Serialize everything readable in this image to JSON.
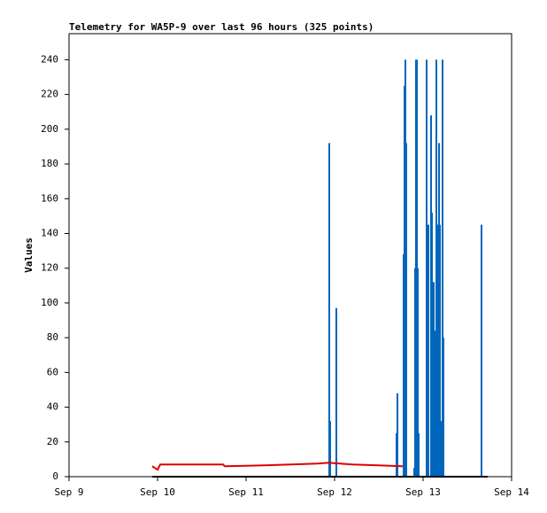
{
  "chart_data": {
    "type": "line",
    "title": "Telemetry for WA5P-9 over last 96 hours (325 points)",
    "y_label": "Values",
    "xlim": [
      9,
      14
    ],
    "xticks": [
      {
        "value": 9,
        "label": "Sep 9"
      },
      {
        "value": 10,
        "label": "Sep 10"
      },
      {
        "value": 11,
        "label": "Sep 11"
      },
      {
        "value": 12,
        "label": "Sep 12"
      },
      {
        "value": 13,
        "label": "Sep 13"
      },
      {
        "value": 14,
        "label": "Sep 14"
      }
    ],
    "ylim": [
      0,
      255
    ],
    "yticks": [
      0,
      20,
      40,
      60,
      80,
      100,
      120,
      140,
      160,
      180,
      200,
      220,
      240
    ],
    "grid": false,
    "series": [
      {
        "color": "#0066bb",
        "style": "impulse",
        "x": [
          11.94,
          11.95,
          12.02,
          12.7,
          12.71,
          12.78,
          12.79,
          12.8,
          12.81,
          12.9,
          12.91,
          12.92,
          12.93,
          12.94,
          12.95,
          13.04,
          13.06,
          13.09,
          13.1,
          13.11,
          13.12,
          13.13,
          13.14,
          13.15,
          13.16,
          13.17,
          13.18,
          13.19,
          13.2,
          13.22,
          13.23,
          13.66
        ],
        "values": [
          192,
          32,
          97,
          25,
          48,
          128,
          225,
          240,
          192,
          5,
          120,
          240,
          240,
          120,
          25,
          240,
          145,
          208,
          152,
          96,
          112,
          84,
          80,
          240,
          145,
          145,
          192,
          145,
          32,
          240,
          80,
          145
        ]
      },
      {
        "color": "#dd0000",
        "style": "line",
        "x": [
          9.94,
          9.97,
          10.0,
          10.03,
          10.74,
          10.76,
          11.2,
          11.8,
          11.94,
          12.2,
          12.5,
          12.77
        ],
        "values": [
          6,
          5,
          4,
          7,
          7,
          6,
          6.5,
          7.5,
          8,
          7,
          6.5,
          6
        ]
      },
      {
        "color": "#000000",
        "style": "line",
        "x": [
          9.94,
          13.73
        ],
        "values": [
          0,
          0
        ]
      }
    ]
  }
}
